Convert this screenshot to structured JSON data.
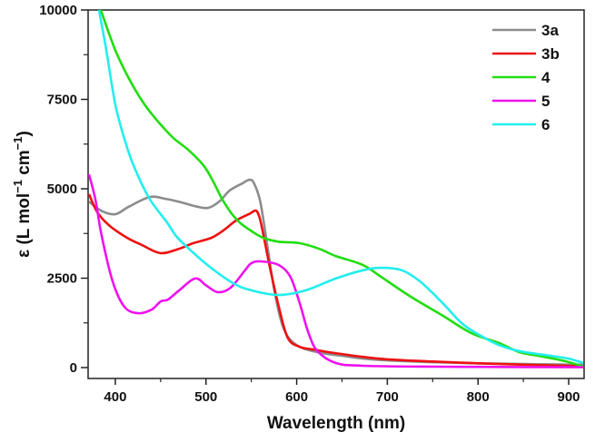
{
  "chart_data": {
    "type": "line",
    "title": "",
    "xlabel": "Wavelength (nm)",
    "ylabel_parts": {
      "prefix": "ε (L mol",
      "sup1": "−1",
      "mid": " cm",
      "sup2": "−1",
      "suffix": ")"
    },
    "xlim": [
      370,
      917
    ],
    "ylim": [
      0,
      10000
    ],
    "x_ticks": [
      400,
      500,
      600,
      700,
      800,
      900
    ],
    "x_tick_labels": [
      "400",
      "500",
      "600",
      "700",
      "800",
      "900"
    ],
    "x_minor_ticks": [
      450,
      550,
      650,
      750,
      850
    ],
    "y_ticks": [
      0,
      2500,
      5000,
      7500,
      10000
    ],
    "y_tick_labels": [
      "0",
      "2500",
      "5000",
      "7500",
      "10000"
    ],
    "y_minor_ticks": [
      1250,
      3750,
      6250,
      8750
    ],
    "grid": false,
    "legend_position": "top-right",
    "series": [
      {
        "name": "3a",
        "color": "#8c8c8c",
        "points": [
          [
            371,
            4640
          ],
          [
            385,
            4380
          ],
          [
            400,
            4290
          ],
          [
            415,
            4500
          ],
          [
            438,
            4770
          ],
          [
            455,
            4720
          ],
          [
            470,
            4640
          ],
          [
            490,
            4500
          ],
          [
            503,
            4470
          ],
          [
            515,
            4650
          ],
          [
            526,
            4950
          ],
          [
            540,
            5150
          ],
          [
            548,
            5250
          ],
          [
            553,
            5150
          ],
          [
            560,
            4620
          ],
          [
            568,
            3350
          ],
          [
            576,
            2080
          ],
          [
            586,
            1070
          ],
          [
            600,
            630
          ],
          [
            623,
            430
          ],
          [
            650,
            330
          ],
          [
            673,
            250
          ],
          [
            700,
            200
          ],
          [
            750,
            150
          ],
          [
            800,
            120
          ],
          [
            850,
            100
          ],
          [
            900,
            85
          ],
          [
            916,
            80
          ]
        ]
      },
      {
        "name": "3b",
        "color": "#ee1111",
        "points": [
          [
            371,
            4850
          ],
          [
            380,
            4350
          ],
          [
            393,
            3980
          ],
          [
            413,
            3630
          ],
          [
            430,
            3420
          ],
          [
            450,
            3200
          ],
          [
            470,
            3320
          ],
          [
            486,
            3480
          ],
          [
            506,
            3630
          ],
          [
            520,
            3850
          ],
          [
            533,
            4110
          ],
          [
            548,
            4300
          ],
          [
            555,
            4390
          ],
          [
            559,
            4200
          ],
          [
            563,
            3760
          ],
          [
            571,
            2740
          ],
          [
            580,
            1730
          ],
          [
            590,
            840
          ],
          [
            603,
            580
          ],
          [
            620,
            500
          ],
          [
            636,
            430
          ],
          [
            673,
            300
          ],
          [
            700,
            230
          ],
          [
            750,
            170
          ],
          [
            800,
            120
          ],
          [
            850,
            80
          ],
          [
            900,
            50
          ],
          [
            916,
            30
          ]
        ]
      },
      {
        "name": "4",
        "color": "#22dd11",
        "points": [
          [
            384,
            10000
          ],
          [
            403,
            8700
          ],
          [
            430,
            7440
          ],
          [
            460,
            6520
          ],
          [
            480,
            6100
          ],
          [
            497,
            5660
          ],
          [
            507,
            5250
          ],
          [
            517,
            4750
          ],
          [
            527,
            4350
          ],
          [
            537,
            4060
          ],
          [
            550,
            3820
          ],
          [
            563,
            3630
          ],
          [
            580,
            3520
          ],
          [
            603,
            3480
          ],
          [
            625,
            3320
          ],
          [
            643,
            3120
          ],
          [
            673,
            2870
          ],
          [
            693,
            2540
          ],
          [
            726,
            1980
          ],
          [
            760,
            1470
          ],
          [
            793,
            960
          ],
          [
            823,
            690
          ],
          [
            846,
            430
          ],
          [
            873,
            300
          ],
          [
            896,
            180
          ],
          [
            913,
            50
          ],
          [
            916,
            20
          ]
        ]
      },
      {
        "name": "5",
        "color": "#ee11ee",
        "points": [
          [
            371,
            5400
          ],
          [
            378,
            4700
          ],
          [
            385,
            3680
          ],
          [
            397,
            2410
          ],
          [
            410,
            1700
          ],
          [
            425,
            1520
          ],
          [
            440,
            1620
          ],
          [
            450,
            1850
          ],
          [
            458,
            1900
          ],
          [
            470,
            2150
          ],
          [
            488,
            2490
          ],
          [
            500,
            2300
          ],
          [
            513,
            2110
          ],
          [
            527,
            2230
          ],
          [
            543,
            2720
          ],
          [
            550,
            2920
          ],
          [
            560,
            2970
          ],
          [
            580,
            2870
          ],
          [
            593,
            2540
          ],
          [
            603,
            1830
          ],
          [
            613,
            970
          ],
          [
            623,
            460
          ],
          [
            643,
            130
          ],
          [
            673,
            50
          ],
          [
            750,
            25
          ],
          [
            850,
            15
          ],
          [
            916,
            10
          ]
        ]
      },
      {
        "name": "6",
        "color": "#22eeee",
        "points": [
          [
            382,
            10000
          ],
          [
            390,
            8880
          ],
          [
            400,
            7360
          ],
          [
            410,
            6400
          ],
          [
            420,
            5660
          ],
          [
            437,
            4750
          ],
          [
            457,
            4060
          ],
          [
            467,
            3680
          ],
          [
            480,
            3350
          ],
          [
            503,
            2840
          ],
          [
            530,
            2360
          ],
          [
            550,
            2160
          ],
          [
            580,
            2030
          ],
          [
            610,
            2160
          ],
          [
            643,
            2490
          ],
          [
            673,
            2720
          ],
          [
            693,
            2790
          ],
          [
            716,
            2720
          ],
          [
            736,
            2410
          ],
          [
            760,
            1830
          ],
          [
            783,
            1220
          ],
          [
            803,
            890
          ],
          [
            823,
            630
          ],
          [
            846,
            460
          ],
          [
            880,
            330
          ],
          [
            900,
            250
          ],
          [
            916,
            130
          ]
        ]
      }
    ]
  }
}
